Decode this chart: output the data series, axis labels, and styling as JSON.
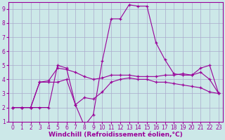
{
  "background_color": "#cce8e8",
  "line_color": "#990099",
  "grid_color": "#aaaacc",
  "xlabel": "Windchill (Refroidissement éolien,°C)",
  "xlim": [
    -0.5,
    23.5
  ],
  "ylim": [
    1,
    9.5
  ],
  "xticks": [
    0,
    1,
    2,
    3,
    4,
    5,
    6,
    7,
    8,
    9,
    10,
    11,
    12,
    13,
    14,
    15,
    16,
    17,
    18,
    19,
    20,
    21,
    22,
    23
  ],
  "yticks": [
    1,
    2,
    3,
    4,
    5,
    6,
    7,
    8,
    9
  ],
  "line1_x": [
    0,
    1,
    2,
    3,
    4,
    5,
    6,
    7,
    8,
    9,
    10,
    11,
    12,
    13,
    14,
    15,
    16,
    17,
    18,
    19,
    20,
    21,
    22,
    23
  ],
  "line1_y": [
    2.0,
    2.0,
    2.0,
    2.0,
    2.0,
    5.0,
    4.8,
    2.2,
    0.7,
    1.5,
    5.3,
    8.3,
    8.3,
    9.3,
    9.2,
    9.2,
    6.6,
    5.4,
    4.4,
    4.3,
    4.3,
    4.8,
    5.0,
    3.0
  ],
  "line2_x": [
    0,
    1,
    2,
    3,
    4,
    5,
    6,
    7,
    8,
    9,
    10,
    11,
    12,
    13,
    14,
    15,
    16,
    17,
    18,
    19,
    20,
    21,
    22,
    23
  ],
  "line2_y": [
    2.0,
    2.0,
    2.0,
    3.8,
    3.9,
    4.8,
    4.7,
    4.5,
    4.2,
    4.0,
    4.1,
    4.3,
    4.3,
    4.3,
    4.2,
    4.2,
    4.2,
    4.3,
    4.3,
    4.4,
    4.3,
    4.5,
    4.0,
    3.0
  ],
  "line3_x": [
    0,
    1,
    2,
    3,
    4,
    5,
    6,
    7,
    8,
    9,
    10,
    11,
    12,
    13,
    14,
    15,
    16,
    17,
    18,
    19,
    20,
    21,
    22,
    23
  ],
  "line3_y": [
    2.0,
    2.0,
    2.0,
    3.8,
    3.8,
    3.8,
    4.0,
    2.2,
    2.7,
    2.6,
    3.1,
    3.8,
    4.0,
    4.1,
    4.0,
    4.0,
    3.8,
    3.8,
    3.7,
    3.6,
    3.5,
    3.4,
    3.1,
    3.0
  ],
  "marker": "+",
  "markersize": 3,
  "linewidth": 0.8,
  "xlabel_fontsize": 6.5,
  "tick_fontsize": 5.5
}
